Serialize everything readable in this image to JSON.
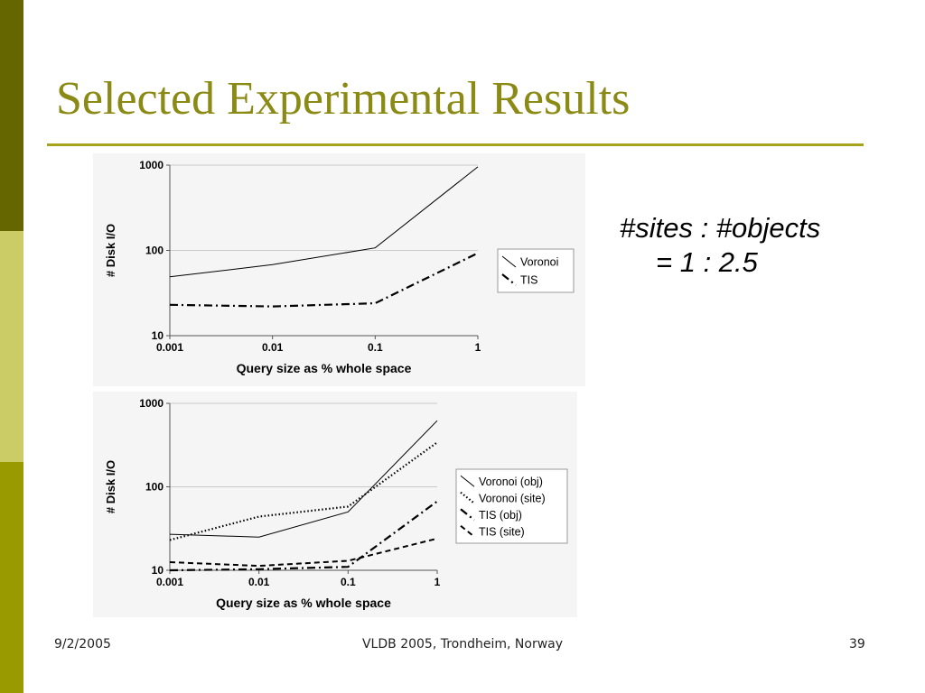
{
  "colors": {
    "sidebar_top": "#666600",
    "sidebar_mid": "#cccc66",
    "sidebar_bottom": "#999900",
    "title": "#8a8a14",
    "rule": "#a6a31c"
  },
  "slide": {
    "title": "Selected Experimental Results",
    "ratio_line1": "#sites : #objects",
    "ratio_line2": "= 1 : 2.5"
  },
  "footer": {
    "date": "9/2/2005",
    "venue": "VLDB 2005, Trondheim, Norway",
    "page": "39"
  },
  "chart_data": [
    {
      "type": "line",
      "xlabel": "Query size as % whole space",
      "ylabel": "# Disk I/O",
      "x_scale": "log",
      "y_scale": "log",
      "x": [
        0.001,
        0.01,
        0.1,
        1
      ],
      "x_tick_labels": [
        "0.001",
        "0.01",
        "0.1",
        "1"
      ],
      "y_tick_labels": [
        "10",
        "100",
        "1000"
      ],
      "ylim": [
        10,
        1000
      ],
      "grid": "horizontal",
      "legend": "right",
      "series": [
        {
          "name": "Voronoi",
          "values": [
            49,
            68,
            107,
            955
          ],
          "style": "solid"
        },
        {
          "name": "TIS",
          "values": [
            23,
            22,
            24,
            93
          ],
          "style": "dashdot"
        }
      ]
    },
    {
      "type": "line",
      "xlabel": "Query size as % whole space",
      "ylabel": "# Disk I/O",
      "x_scale": "log",
      "y_scale": "log",
      "x": [
        0.001,
        0.01,
        0.1,
        1
      ],
      "x_tick_labels": [
        "0.001",
        "0.01",
        "0.1",
        "1"
      ],
      "y_tick_labels": [
        "10",
        "100",
        "1000"
      ],
      "ylim": [
        10,
        1000
      ],
      "grid": "horizontal",
      "legend": "right",
      "series": [
        {
          "name": "Voronoi (obj)",
          "values": [
            27,
            25,
            50,
            620
          ],
          "style": "solid"
        },
        {
          "name": "Voronoi (site)",
          "values": [
            23,
            44,
            58,
            340
          ],
          "style": "dotted"
        },
        {
          "name": "TIS (obj)",
          "values": [
            10,
            10.3,
            11,
            67
          ],
          "style": "dashdot"
        },
        {
          "name": "TIS (site)",
          "values": [
            12.5,
            11.3,
            13,
            24
          ],
          "style": "dashed"
        }
      ]
    }
  ]
}
